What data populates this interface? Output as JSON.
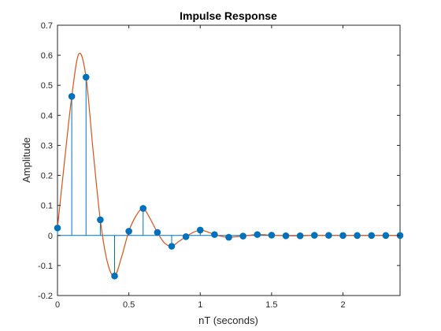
{
  "chart_data": {
    "type": "stem",
    "title": "Impulse Response",
    "xlabel": "nT (seconds)",
    "ylabel": "Amplitude",
    "xlim": [
      0,
      2.4
    ],
    "ylim": [
      -0.2,
      0.7
    ],
    "xticks": [
      0,
      0.5,
      1,
      1.5,
      2
    ],
    "xtick_labels": [
      "0",
      "0.5",
      "1",
      "1.5",
      "2"
    ],
    "yticks": [
      -0.2,
      -0.1,
      0,
      0.1,
      0.2,
      0.3,
      0.4,
      0.5,
      0.6,
      0.7
    ],
    "ytick_labels": [
      "-0.2",
      "-0.1",
      "0",
      "0.1",
      "0.2",
      "0.3",
      "0.4",
      "0.5",
      "0.6",
      "0.7"
    ],
    "grid": false,
    "series": [
      {
        "kind": "stem",
        "color": "#0072BD",
        "x": [
          0,
          0.1,
          0.2,
          0.3,
          0.4,
          0.5,
          0.6,
          0.7,
          0.8,
          0.9,
          1.0,
          1.1,
          1.2,
          1.3,
          1.4,
          1.5,
          1.6,
          1.7,
          1.8,
          1.9,
          2.0,
          2.1,
          2.2,
          2.3,
          2.4
        ],
        "y": [
          0.025,
          0.463,
          0.527,
          0.052,
          -0.135,
          0.014,
          0.09,
          0.01,
          -0.036,
          -0.004,
          0.018,
          0.003,
          -0.006,
          -0.002,
          0.003,
          0.001,
          -0.001,
          -0.001,
          0.0005,
          0.0004,
          0.0,
          0.0,
          0.0,
          0.0,
          0.0
        ]
      },
      {
        "kind": "line",
        "color": "#D95319",
        "x": [
          0,
          0.05,
          0.1,
          0.15,
          0.2,
          0.25,
          0.3,
          0.35,
          0.4,
          0.45,
          0.5,
          0.55,
          0.6,
          0.65,
          0.7,
          0.75,
          0.8,
          0.85,
          0.9,
          0.95,
          1.0,
          1.05,
          1.1,
          1.15,
          1.2,
          1.25,
          1.3,
          1.4,
          1.5,
          1.6,
          1.7,
          1.8,
          1.9,
          2.0,
          2.2,
          2.4
        ],
        "y": [
          0.025,
          0.25,
          0.463,
          0.605,
          0.527,
          0.28,
          0.052,
          -0.09,
          -0.135,
          -0.07,
          0.014,
          0.065,
          0.09,
          0.055,
          0.01,
          -0.025,
          -0.036,
          -0.02,
          -0.004,
          0.01,
          0.018,
          0.012,
          0.003,
          -0.003,
          -0.006,
          -0.004,
          -0.002,
          0.003,
          0.001,
          -0.001,
          -0.001,
          0.0005,
          0.0004,
          0.0,
          0.0,
          0.0
        ]
      }
    ]
  }
}
